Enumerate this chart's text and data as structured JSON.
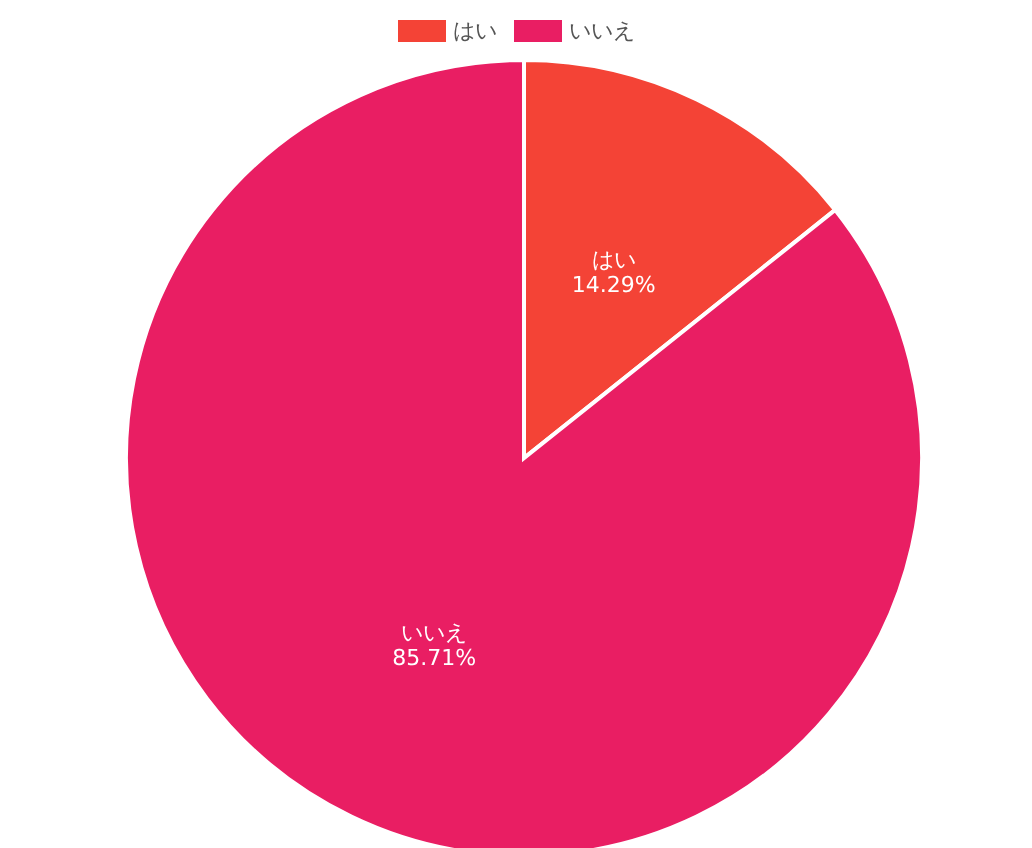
{
  "chart_data": {
    "type": "pie",
    "categories": [
      "はい",
      "いいえ"
    ],
    "values": [
      14.29,
      85.71
    ],
    "colors": [
      "#f44336",
      "#e91e63"
    ],
    "value_labels": [
      "14.29%",
      "85.71%"
    ],
    "legend": "top"
  }
}
